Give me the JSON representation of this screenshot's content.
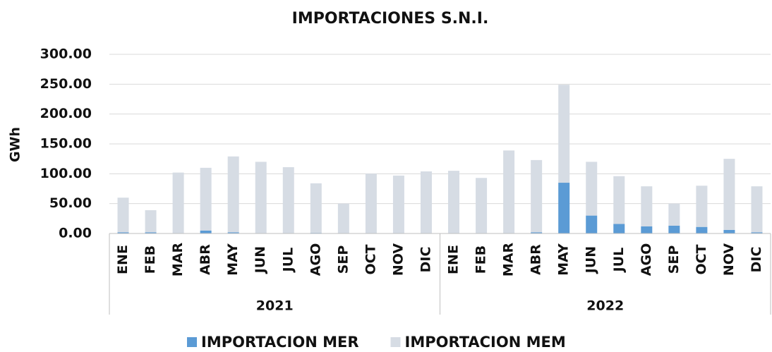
{
  "chart_data": {
    "type": "stacked_bar",
    "title": "IMPORTACIONES S.N.I.",
    "y_label": "GWh",
    "categories": [
      "ENE",
      "FEB",
      "MAR",
      "ABR",
      "MAY",
      "JUN",
      "JUL",
      "AGO",
      "SEP",
      "OCT",
      "NOV",
      "DIC",
      "ENE",
      "FEB",
      "MAR",
      "ABR",
      "MAY",
      "JUN",
      "JUL",
      "AGO",
      "SEP",
      "OCT",
      "NOV",
      "DIC"
    ],
    "years": [
      "2021",
      "2022"
    ],
    "series": [
      {
        "name": "IMPORTACION MER",
        "color": "#5b9bd5",
        "values": [
          2,
          2,
          0,
          5,
          2,
          0,
          0,
          1,
          0,
          0,
          0,
          0,
          0,
          0,
          0,
          2,
          85,
          30,
          16,
          12,
          13,
          11,
          6,
          2
        ]
      },
      {
        "name": "IMPORTACION MEM",
        "color": "#d6dce4",
        "values": [
          58,
          37,
          102,
          105,
          127,
          120,
          111,
          83,
          50,
          100,
          97,
          104,
          105,
          93,
          139,
          121,
          164,
          90,
          80,
          67,
          37,
          69,
          119,
          77
        ]
      }
    ],
    "ylim": [
      0,
      300
    ],
    "yticks": [
      {
        "value": 0,
        "label": "0.00"
      },
      {
        "value": 50,
        "label": "50.00"
      },
      {
        "value": 100,
        "label": "100.00"
      },
      {
        "value": 150,
        "label": "150.00"
      },
      {
        "value": 200,
        "label": "200.00"
      },
      {
        "value": 250,
        "label": "250.00"
      },
      {
        "value": 300,
        "label": "300.00"
      }
    ],
    "grid": true
  }
}
